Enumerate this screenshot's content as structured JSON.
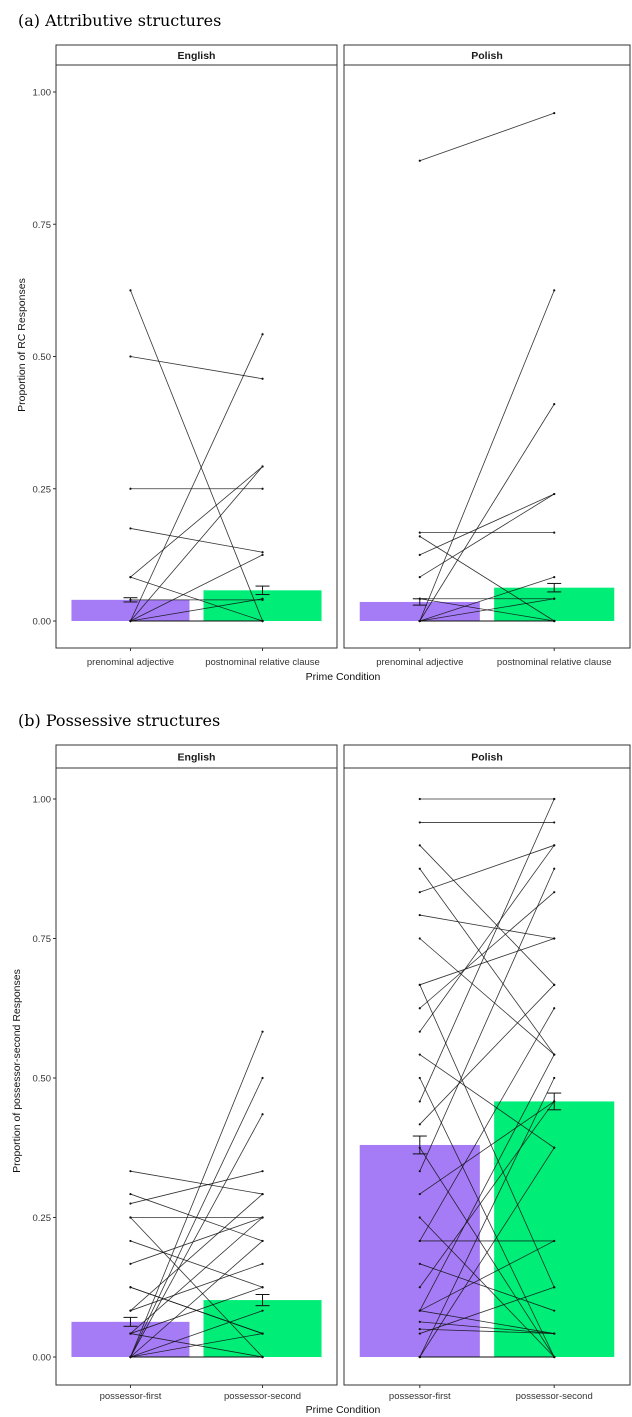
{
  "figure": {
    "colors": {
      "first": "#a57cf6",
      "second": "#00ee77",
      "line": "#111111"
    },
    "sections": [
      {
        "title": "(a) Attributive structures",
        "ylabel": "Proportion of RC Responses",
        "xlabel": "Prime Condition"
      },
      {
        "title": "(b) Possessive structures",
        "ylabel": "Proportion of possessor-second Responses",
        "xlabel": "Prime Condition"
      }
    ]
  },
  "chart_data": [
    {
      "type": "bar",
      "title": "(a) Attributive structures",
      "xlabel": "Prime Condition",
      "ylabel": "Proportion of RC Responses",
      "ylim": [
        0,
        1.05
      ],
      "yticks": [
        "0.00",
        "0.25",
        "0.50",
        "0.75",
        "1.00"
      ],
      "categories": [
        "prenominal adjective",
        "postnominal relative clause"
      ],
      "panels": [
        {
          "name": "English",
          "means": [
            0.04,
            0.058
          ],
          "errors": [
            0.004,
            0.008
          ],
          "pairs": [
            [
              0.625,
              0.0
            ],
            [
              0.5,
              0.458
            ],
            [
              0.0,
              0.542
            ],
            [
              0.083,
              0.0
            ],
            [
              0.0,
              0.292
            ],
            [
              0.25,
              0.25
            ],
            [
              0.083,
              0.292
            ],
            [
              0.175,
              0.13
            ],
            [
              0.0,
              0.125
            ],
            [
              0.0,
              0.042
            ],
            [
              0.04,
              0.04
            ],
            [
              0.0,
              0.0
            ],
            [
              0.0,
              0.0
            ],
            [
              0.0,
              0.0
            ],
            [
              0.0,
              0.0
            ],
            [
              0.0,
              0.0
            ],
            [
              0.0,
              0.0
            ]
          ]
        },
        {
          "name": "Polish",
          "means": [
            0.036,
            0.063
          ],
          "errors": [
            0.006,
            0.008
          ],
          "pairs": [
            [
              0.87,
              0.96
            ],
            [
              0.0,
              0.625
            ],
            [
              0.0,
              0.41
            ],
            [
              0.083,
              0.24
            ],
            [
              0.125,
              0.24
            ],
            [
              0.16,
              0.0
            ],
            [
              0.167,
              0.167
            ],
            [
              0.0,
              0.083
            ],
            [
              0.042,
              0.0
            ],
            [
              0.042,
              0.042
            ],
            [
              0.0,
              0.042
            ],
            [
              0.0,
              0.0
            ],
            [
              0.0,
              0.0
            ],
            [
              0.0,
              0.0
            ],
            [
              0.0,
              0.0
            ],
            [
              0.0,
              0.0
            ],
            [
              0.0,
              0.0
            ]
          ]
        }
      ]
    },
    {
      "type": "bar",
      "title": "(b) Possessive structures",
      "xlabel": "Prime Condition",
      "ylabel": "Proportion of possessor-second Responses",
      "ylim": [
        0,
        1.05
      ],
      "yticks": [
        "0.00",
        "0.25",
        "0.50",
        "0.75",
        "1.00"
      ],
      "categories": [
        "possessor-first",
        "possessor-second"
      ],
      "panels": [
        {
          "name": "English",
          "means": [
            0.063,
            0.102
          ],
          "errors": [
            0.008,
            0.01
          ],
          "pairs": [
            [
              0.0,
              0.583
            ],
            [
              0.0,
              0.5
            ],
            [
              0.0,
              0.435
            ],
            [
              0.333,
              0.292
            ],
            [
              0.292,
              0.208
            ],
            [
              0.25,
              0.0
            ],
            [
              0.275,
              0.333
            ],
            [
              0.25,
              0.25
            ],
            [
              0.208,
              0.125
            ],
            [
              0.167,
              0.25
            ],
            [
              0.125,
              0.042
            ],
            [
              0.125,
              0.042
            ],
            [
              0.083,
              0.167
            ],
            [
              0.083,
              0.292
            ],
            [
              0.042,
              0.0
            ],
            [
              0.042,
              0.25
            ],
            [
              0.042,
              0.125
            ],
            [
              0.0,
              0.083
            ],
            [
              0.0,
              0.208
            ],
            [
              0.0,
              0.042
            ],
            [
              0.0,
              0.0
            ],
            [
              0.0,
              0.0
            ],
            [
              0.0,
              0.0
            ],
            [
              0.0,
              0.0
            ],
            [
              0.0,
              0.0
            ]
          ]
        },
        {
          "name": "Polish",
          "means": [
            0.38,
            0.458
          ],
          "errors": [
            0.016,
            0.015
          ],
          "pairs": [
            [
              1.0,
              1.0
            ],
            [
              0.958,
              0.958
            ],
            [
              0.917,
              0.667
            ],
            [
              0.875,
              0.542
            ],
            [
              0.833,
              0.917
            ],
            [
              0.792,
              0.75
            ],
            [
              0.75,
              0.542
            ],
            [
              0.667,
              0.75
            ],
            [
              0.667,
              0.125
            ],
            [
              0.625,
              0.833
            ],
            [
              0.583,
              0.917
            ],
            [
              0.542,
              0.375
            ],
            [
              0.5,
              0.0
            ],
            [
              0.458,
              1.0
            ],
            [
              0.417,
              0.667
            ],
            [
              0.375,
              0.0
            ],
            [
              0.333,
              0.875
            ],
            [
              0.292,
              0.458
            ],
            [
              0.25,
              0.0
            ],
            [
              0.208,
              0.625
            ],
            [
              0.208,
              0.208
            ],
            [
              0.167,
              0.083
            ],
            [
              0.125,
              0.458
            ],
            [
              0.083,
              0.542
            ],
            [
              0.083,
              0.208
            ],
            [
              0.083,
              0.042
            ],
            [
              0.063,
              0.042
            ],
            [
              0.05,
              0.042
            ],
            [
              0.042,
              0.125
            ],
            [
              0.0,
              0.5
            ],
            [
              0.0,
              0.375
            ],
            [
              0.0,
              0.0
            ],
            [
              0.0,
              0.0
            ],
            [
              0.0,
              0.0
            ],
            [
              0.0,
              0.0
            ],
            [
              0.0,
              0.0
            ]
          ]
        }
      ]
    }
  ]
}
